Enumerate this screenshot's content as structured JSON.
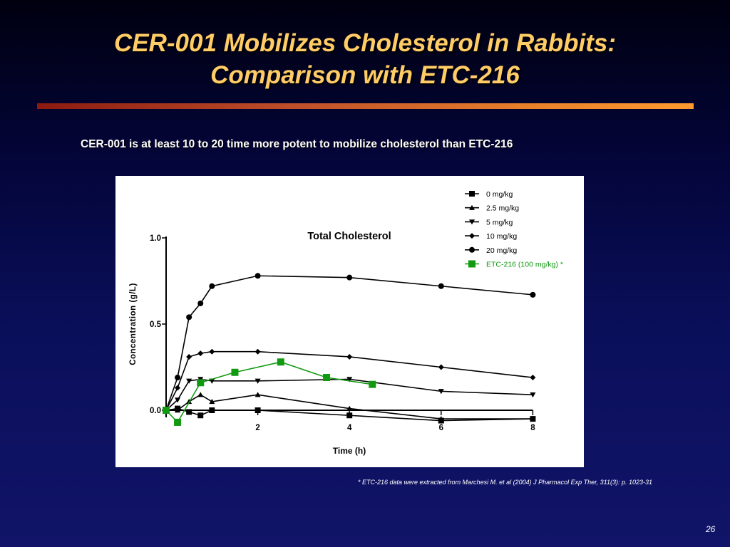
{
  "slide": {
    "title_line1": "CER-001 Mobilizes Cholesterol in Rabbits:",
    "title_line2": "Comparison with ETC-216",
    "subtitle": "CER-001 is at least 10 to 20 time more potent to mobilize cholesterol than ETC-216",
    "footnote": "* ETC-216 data were extracted from Marchesi M. et al (2004) J Pharmacol Exp Ther, 311(3): p. 1023-31",
    "page_number": "26"
  },
  "chart_data": {
    "type": "line",
    "title": "Total Cholesterol",
    "xlabel": "Time (h)",
    "ylabel": "Concentration (g/L)",
    "xlim": [
      0,
      8
    ],
    "ylim": [
      -0.05,
      1.0
    ],
    "x_ticks": [
      "2",
      "4",
      "6",
      "8"
    ],
    "y_ticks": [
      "0.0",
      "0.5",
      "1.0"
    ],
    "legend_position": "top-right",
    "series": [
      {
        "name": "0 mg/kg",
        "marker": "square",
        "color": "#000000",
        "x": [
          0,
          0.25,
          0.5,
          0.75,
          1,
          2,
          4,
          6,
          8
        ],
        "y": [
          0.0,
          0.01,
          -0.01,
          -0.03,
          0.0,
          0.0,
          -0.03,
          -0.06,
          -0.05
        ]
      },
      {
        "name": "2.5 mg/kg",
        "marker": "triangle-up",
        "color": "#000000",
        "x": [
          0,
          0.25,
          0.5,
          0.75,
          1,
          2,
          4,
          6,
          8
        ],
        "y": [
          0.0,
          0.0,
          0.05,
          0.09,
          0.05,
          0.09,
          0.01,
          -0.05,
          -0.05
        ]
      },
      {
        "name": "5 mg/kg",
        "marker": "triangle-down",
        "color": "#000000",
        "x": [
          0,
          0.25,
          0.5,
          0.75,
          1,
          2,
          4,
          6,
          8
        ],
        "y": [
          0.0,
          0.06,
          0.17,
          0.18,
          0.17,
          0.17,
          0.18,
          0.11,
          0.09
        ]
      },
      {
        "name": "10 mg/kg",
        "marker": "diamond",
        "color": "#000000",
        "x": [
          0,
          0.25,
          0.5,
          0.75,
          1,
          2,
          4,
          6,
          8
        ],
        "y": [
          0.0,
          0.13,
          0.31,
          0.33,
          0.34,
          0.34,
          0.31,
          0.25,
          0.19
        ]
      },
      {
        "name": "20 mg/kg",
        "marker": "circle",
        "color": "#000000",
        "x": [
          0,
          0.25,
          0.5,
          0.75,
          1,
          2,
          4,
          6,
          8
        ],
        "y": [
          0.0,
          0.19,
          0.54,
          0.62,
          0.72,
          0.78,
          0.77,
          0.72,
          0.67
        ]
      },
      {
        "name": "ETC-216 (100 mg/kg) *",
        "marker": "square",
        "color": "#119911",
        "x": [
          0,
          0.25,
          0.75,
          1.5,
          2.5,
          3.5,
          4.5
        ],
        "y": [
          0.0,
          -0.07,
          0.16,
          0.22,
          0.28,
          0.19,
          0.15
        ]
      }
    ]
  }
}
